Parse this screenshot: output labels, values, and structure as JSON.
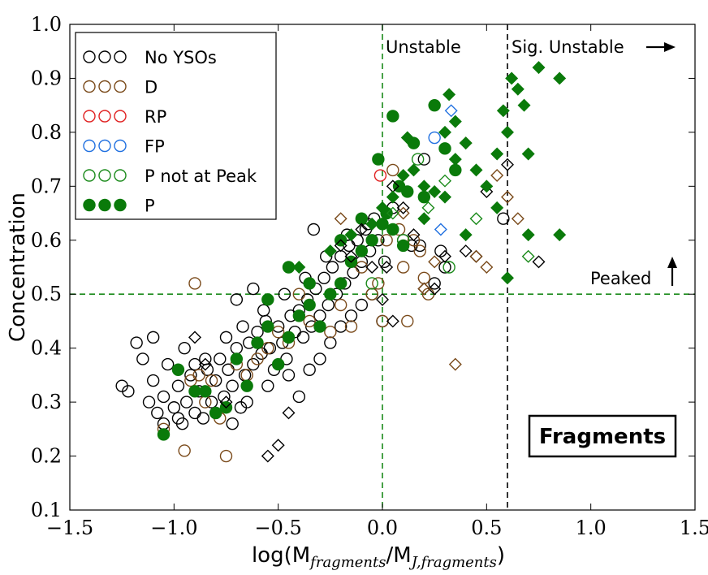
{
  "chart_data": {
    "type": "scatter",
    "title": "",
    "xlabel": "log(M_fragments/M_J,fragments)",
    "xlabel_parts": {
      "main": "log(M",
      "sub1": "fragments",
      "mid": "/M",
      "sub2": "J,fragments",
      "end": ")"
    },
    "ylabel": "Concentration",
    "xlim": [
      -1.5,
      1.5
    ],
    "ylim": [
      0.1,
      1.0
    ],
    "xticks": [
      -1.5,
      -1.0,
      -0.5,
      0.0,
      0.5,
      1.0,
      1.5
    ],
    "xtick_labels": [
      "−1.5",
      "−1.0",
      "−0.5",
      "0.0",
      "0.5",
      "1.0",
      "1.5"
    ],
    "yticks": [
      0.1,
      0.2,
      0.3,
      0.4,
      0.5,
      0.6,
      0.7,
      0.8,
      0.9,
      1.0
    ],
    "ytick_labels": [
      "0.1",
      "0.2",
      "0.3",
      "0.4",
      "0.5",
      "0.6",
      "0.7",
      "0.8",
      "0.9",
      "1.0"
    ],
    "reference_lines": [
      {
        "orientation": "vertical",
        "value": 0.0,
        "color": "#1a8a1a",
        "style": "dashed"
      },
      {
        "orientation": "vertical",
        "value": 0.6,
        "color": "#000000",
        "style": "dashed"
      },
      {
        "orientation": "horizontal",
        "value": 0.5,
        "color": "#1a8a1a",
        "style": "dashed"
      }
    ],
    "annotations": {
      "unstable": "Unstable",
      "sig_unstable": "Sig. Unstable",
      "peaked": "Peaked",
      "panel_label": "Fragments"
    },
    "legend_position": "upper-left",
    "series": [
      {
        "name": "No YSOs",
        "color": "#000000",
        "filled": false,
        "points": [
          [
            -1.25,
            0.33
          ],
          [
            -1.22,
            0.32
          ],
          [
            -1.18,
            0.41
          ],
          [
            -1.15,
            0.38
          ],
          [
            -1.12,
            0.3
          ],
          [
            -1.1,
            0.34
          ],
          [
            -1.08,
            0.28
          ],
          [
            -1.05,
            0.31
          ],
          [
            -1.03,
            0.37
          ],
          [
            -1.0,
            0.29
          ],
          [
            -0.98,
            0.33
          ],
          [
            -0.96,
            0.26
          ],
          [
            -0.94,
            0.3
          ],
          [
            -0.92,
            0.35
          ],
          [
            -0.9,
            0.28
          ],
          [
            -0.88,
            0.32
          ],
          [
            -0.86,
            0.27
          ],
          [
            -0.84,
            0.36
          ],
          [
            -0.82,
            0.3
          ],
          [
            -0.8,
            0.34
          ],
          [
            -0.78,
            0.38
          ],
          [
            -0.76,
            0.31
          ],
          [
            -0.74,
            0.36
          ],
          [
            -0.72,
            0.33
          ],
          [
            -0.7,
            0.4
          ],
          [
            -0.68,
            0.29
          ],
          [
            -0.66,
            0.35
          ],
          [
            -0.64,
            0.41
          ],
          [
            -0.62,
            0.37
          ],
          [
            -0.6,
            0.43
          ],
          [
            -0.58,
            0.39
          ],
          [
            -0.56,
            0.45
          ],
          [
            -0.54,
            0.4
          ],
          [
            -0.52,
            0.36
          ],
          [
            -0.5,
            0.44
          ],
          [
            -0.48,
            0.41
          ],
          [
            -0.46,
            0.38
          ],
          [
            -0.44,
            0.46
          ],
          [
            -0.42,
            0.43
          ],
          [
            -0.4,
            0.47
          ],
          [
            -0.38,
            0.42
          ],
          [
            -0.36,
            0.49
          ],
          [
            -0.34,
            0.44
          ],
          [
            -0.32,
            0.51
          ],
          [
            -0.3,
            0.46
          ],
          [
            -0.28,
            0.53
          ],
          [
            -0.26,
            0.48
          ],
          [
            -0.24,
            0.55
          ],
          [
            -0.22,
            0.5
          ],
          [
            -0.2,
            0.57
          ],
          [
            -0.18,
            0.52
          ],
          [
            -0.16,
            0.59
          ],
          [
            -0.14,
            0.54
          ],
          [
            -0.12,
            0.6
          ],
          [
            -0.1,
            0.56
          ],
          [
            -0.08,
            0.62
          ],
          [
            -0.06,
            0.58
          ],
          [
            -0.04,
            0.64
          ],
          [
            -0.02,
            0.6
          ],
          [
            0.01,
            0.56
          ],
          [
            0.05,
            0.66
          ],
          [
            0.1,
            0.6
          ],
          [
            0.14,
            0.59
          ],
          [
            0.18,
            0.59
          ],
          [
            0.25,
            0.52
          ],
          [
            0.3,
            0.55
          ],
          [
            0.58,
            0.64
          ],
          [
            -0.33,
            0.62
          ],
          [
            -0.7,
            0.49
          ],
          [
            -0.62,
            0.51
          ],
          [
            -1.1,
            0.42
          ],
          [
            -0.95,
            0.4
          ],
          [
            -0.85,
            0.38
          ],
          [
            -0.75,
            0.42
          ],
          [
            -0.65,
            0.3
          ],
          [
            -0.55,
            0.33
          ],
          [
            -0.45,
            0.35
          ],
          [
            -0.4,
            0.31
          ],
          [
            -0.35,
            0.36
          ],
          [
            -0.3,
            0.38
          ],
          [
            -0.25,
            0.41
          ],
          [
            -0.2,
            0.44
          ],
          [
            -0.15,
            0.46
          ],
          [
            -0.1,
            0.48
          ],
          [
            -0.05,
            0.5
          ],
          [
            0.0,
            0.45
          ],
          [
            0.2,
            0.75
          ],
          [
            0.28,
            0.58
          ],
          [
            -0.98,
            0.27
          ],
          [
            -0.9,
            0.37
          ],
          [
            -0.8,
            0.28
          ],
          [
            -0.72,
            0.26
          ],
          [
            -1.05,
            0.26
          ],
          [
            -0.67,
            0.44
          ],
          [
            -0.57,
            0.47
          ],
          [
            -0.47,
            0.5
          ],
          [
            -0.37,
            0.53
          ],
          [
            -0.27,
            0.57
          ],
          [
            -0.17,
            0.61
          ],
          [
            -0.07,
            0.63
          ]
        ]
      },
      {
        "name": "D",
        "color": "#7a4a1a",
        "filled": false,
        "points": [
          [
            -1.05,
            0.25
          ],
          [
            -0.95,
            0.21
          ],
          [
            -0.9,
            0.52
          ],
          [
            -0.92,
            0.34
          ],
          [
            -0.85,
            0.3
          ],
          [
            -0.78,
            0.27
          ],
          [
            -0.75,
            0.2
          ],
          [
            -0.82,
            0.34
          ],
          [
            -0.7,
            0.37
          ],
          [
            -0.65,
            0.35
          ],
          [
            -0.55,
            0.4
          ],
          [
            -0.5,
            0.43
          ],
          [
            -0.45,
            0.41
          ],
          [
            -0.4,
            0.5
          ],
          [
            -0.35,
            0.45
          ],
          [
            -0.25,
            0.43
          ],
          [
            -0.2,
            0.48
          ],
          [
            -0.15,
            0.44
          ],
          [
            -0.1,
            0.55
          ],
          [
            -0.05,
            0.5
          ],
          [
            0.0,
            0.45
          ],
          [
            0.05,
            0.73
          ],
          [
            0.1,
            0.55
          ],
          [
            0.15,
            0.6
          ],
          [
            0.2,
            0.53
          ],
          [
            0.22,
            0.5
          ],
          [
            0.12,
            0.45
          ],
          [
            -0.02,
            0.52
          ],
          [
            0.08,
            0.62
          ],
          [
            0.02,
            0.6
          ],
          [
            0.18,
            0.58
          ],
          [
            -0.6,
            0.38
          ],
          [
            -0.88,
            0.35
          ]
        ]
      },
      {
        "name": "RP",
        "color": "#e02020",
        "filled": false,
        "points": [
          [
            -0.01,
            0.72
          ]
        ]
      },
      {
        "name": "FP",
        "color": "#2070e0",
        "filled": false,
        "points": [
          [
            0.25,
            0.79
          ]
        ]
      },
      {
        "name": "P not at Peak",
        "color": "#1a8a1a",
        "filled": false,
        "points": [
          [
            0.17,
            0.75
          ],
          [
            0.32,
            0.55
          ],
          [
            0.1,
            0.6
          ],
          [
            -0.05,
            0.52
          ]
        ]
      },
      {
        "name": "P",
        "color": "#0a7a0a",
        "filled": true,
        "points": [
          [
            -1.05,
            0.24
          ],
          [
            -0.98,
            0.36
          ],
          [
            -0.9,
            0.32
          ],
          [
            -0.8,
            0.28
          ],
          [
            -0.7,
            0.38
          ],
          [
            -0.65,
            0.33
          ],
          [
            -0.6,
            0.41
          ],
          [
            -0.55,
            0.44
          ],
          [
            -0.5,
            0.37
          ],
          [
            -0.45,
            0.42
          ],
          [
            -0.4,
            0.46
          ],
          [
            -0.35,
            0.48
          ],
          [
            -0.3,
            0.44
          ],
          [
            -0.25,
            0.5
          ],
          [
            -0.2,
            0.52
          ],
          [
            -0.15,
            0.56
          ],
          [
            -0.1,
            0.58
          ],
          [
            -0.05,
            0.6
          ],
          [
            0.0,
            0.63
          ],
          [
            0.02,
            0.65
          ],
          [
            0.05,
            0.62
          ],
          [
            0.08,
            0.7
          ],
          [
            0.12,
            0.69
          ],
          [
            0.15,
            0.78
          ],
          [
            0.05,
            0.83
          ],
          [
            0.2,
            0.68
          ],
          [
            0.3,
            0.77
          ],
          [
            0.35,
            0.73
          ],
          [
            -0.02,
            0.75
          ],
          [
            -0.45,
            0.55
          ],
          [
            -0.55,
            0.49
          ],
          [
            -0.35,
            0.52
          ],
          [
            -0.2,
            0.6
          ],
          [
            -0.1,
            0.64
          ],
          [
            0.1,
            0.59
          ],
          [
            0.25,
            0.85
          ],
          [
            -0.75,
            0.29
          ],
          [
            -0.85,
            0.32
          ]
        ]
      }
    ],
    "diamond_series": [
      {
        "name": "No YSOs",
        "color": "#000000",
        "filled": false,
        "points": [
          [
            -0.9,
            0.42
          ],
          [
            -0.85,
            0.37
          ],
          [
            -0.75,
            0.3
          ],
          [
            -0.55,
            0.2
          ],
          [
            -0.5,
            0.22
          ],
          [
            -0.45,
            0.28
          ],
          [
            -0.2,
            0.59
          ],
          [
            -0.15,
            0.57
          ],
          [
            -0.1,
            0.62
          ],
          [
            -0.05,
            0.55
          ],
          [
            0.0,
            0.49
          ],
          [
            0.02,
            0.55
          ],
          [
            0.05,
            0.7
          ],
          [
            0.1,
            0.66
          ],
          [
            0.15,
            0.61
          ],
          [
            0.2,
            0.51
          ],
          [
            0.25,
            0.51
          ],
          [
            0.3,
            0.57
          ],
          [
            0.4,
            0.58
          ],
          [
            0.45,
            0.57
          ],
          [
            0.5,
            0.69
          ],
          [
            0.6,
            0.74
          ],
          [
            0.75,
            0.56
          ],
          [
            0.05,
            0.45
          ]
        ]
      },
      {
        "name": "D",
        "color": "#7a4a1a",
        "filled": false,
        "points": [
          [
            -0.2,
            0.64
          ],
          [
            0.2,
            0.51
          ],
          [
            0.25,
            0.56
          ],
          [
            0.4,
            0.78
          ],
          [
            0.45,
            0.57
          ],
          [
            0.5,
            0.55
          ],
          [
            0.55,
            0.72
          ],
          [
            0.6,
            0.68
          ],
          [
            0.65,
            0.64
          ],
          [
            0.35,
            0.37
          ],
          [
            0.1,
            0.65
          ]
        ]
      },
      {
        "name": "FP",
        "color": "#2070e0",
        "filled": false,
        "points": [
          [
            0.33,
            0.84
          ],
          [
            0.28,
            0.62
          ]
        ]
      },
      {
        "name": "P not at Peak",
        "color": "#1a8a1a",
        "filled": false,
        "points": [
          [
            0.3,
            0.71
          ],
          [
            0.45,
            0.64
          ],
          [
            0.7,
            0.57
          ],
          [
            0.22,
            0.66
          ],
          [
            0.05,
            0.65
          ]
        ]
      },
      {
        "name": "P",
        "color": "#0a7a0a",
        "filled": true,
        "points": [
          [
            -0.4,
            0.55
          ],
          [
            -0.25,
            0.58
          ],
          [
            -0.15,
            0.61
          ],
          [
            -0.05,
            0.63
          ],
          [
            0.0,
            0.66
          ],
          [
            0.05,
            0.68
          ],
          [
            0.1,
            0.72
          ],
          [
            0.15,
            0.73
          ],
          [
            0.2,
            0.7
          ],
          [
            0.25,
            0.69
          ],
          [
            0.3,
            0.8
          ],
          [
            0.32,
            0.87
          ],
          [
            0.35,
            0.82
          ],
          [
            0.4,
            0.78
          ],
          [
            0.45,
            0.73
          ],
          [
            0.5,
            0.7
          ],
          [
            0.55,
            0.76
          ],
          [
            0.58,
            0.84
          ],
          [
            0.6,
            0.8
          ],
          [
            0.62,
            0.9
          ],
          [
            0.65,
            0.88
          ],
          [
            0.68,
            0.85
          ],
          [
            0.7,
            0.76
          ],
          [
            0.75,
            0.92
          ],
          [
            0.85,
            0.9
          ],
          [
            0.6,
            0.53
          ],
          [
            0.7,
            0.61
          ],
          [
            0.85,
            0.61
          ],
          [
            0.55,
            0.66
          ],
          [
            0.4,
            0.61
          ],
          [
            0.35,
            0.75
          ],
          [
            0.3,
            0.68
          ],
          [
            0.2,
            0.64
          ],
          [
            0.12,
            0.79
          ]
        ]
      }
    ]
  },
  "legend": {
    "items": [
      {
        "label": "No YSOs",
        "color": "#000000",
        "filled": false
      },
      {
        "label": "D",
        "color": "#7a4a1a",
        "filled": false
      },
      {
        "label": "RP",
        "color": "#e02020",
        "filled": false
      },
      {
        "label": "FP",
        "color": "#2070e0",
        "filled": false
      },
      {
        "label": "P not at Peak",
        "color": "#1a8a1a",
        "filled": false
      },
      {
        "label": "P",
        "color": "#0a7a0a",
        "filled": true
      }
    ]
  }
}
